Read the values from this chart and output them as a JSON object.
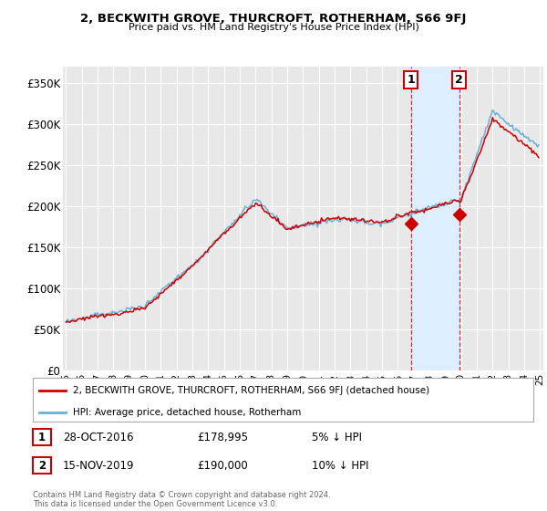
{
  "title": "2, BECKWITH GROVE, THURCROFT, ROTHERHAM, S66 9FJ",
  "subtitle": "Price paid vs. HM Land Registry's House Price Index (HPI)",
  "ylim": [
    0,
    370000
  ],
  "yticks": [
    0,
    50000,
    100000,
    150000,
    200000,
    250000,
    300000,
    350000
  ],
  "ytick_labels": [
    "£0",
    "£50K",
    "£100K",
    "£150K",
    "£200K",
    "£250K",
    "£300K",
    "£350K"
  ],
  "background_color": "#ffffff",
  "plot_bg_color": "#e8e8e8",
  "grid_color": "#ffffff",
  "red_line_color": "#cc0000",
  "blue_line_color": "#6baed6",
  "shade_color": "#ddeeff",
  "sale1_yr": 2016.83,
  "sale1_price": 178995,
  "sale2_yr": 2019.88,
  "sale2_price": 190000,
  "sale1_date": "28-OCT-2016",
  "sale1_price_str": "£178,995",
  "sale1_pct": "5% ↓ HPI",
  "sale2_date": "15-NOV-2019",
  "sale2_price_str": "£190,000",
  "sale2_pct": "10% ↓ HPI",
  "legend_label1": "2, BECKWITH GROVE, THURCROFT, ROTHERHAM, S66 9FJ (detached house)",
  "legend_label2": "HPI: Average price, detached house, Rotherham",
  "footer": "Contains HM Land Registry data © Crown copyright and database right 2024.\nThis data is licensed under the Open Government Licence v3.0.",
  "start_year": 1995,
  "end_year": 2025
}
